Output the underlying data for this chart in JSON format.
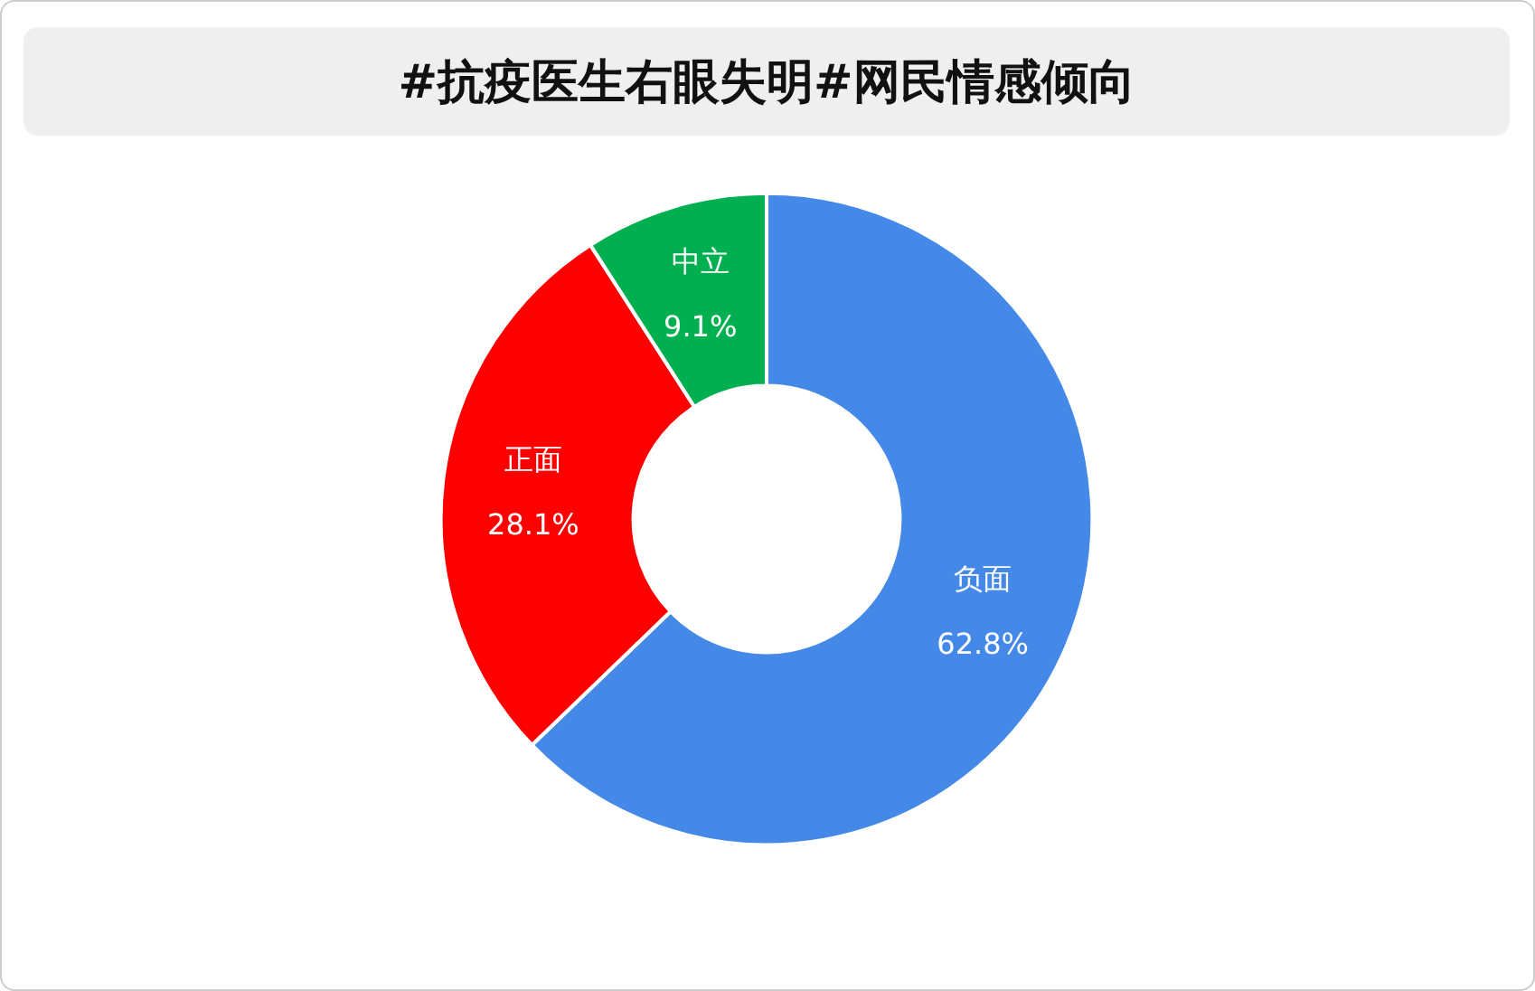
{
  "chart_data": {
    "type": "donut",
    "title": "#抗疫医生右眼失明#网民情感倾向",
    "categories": [
      "负面",
      "正面",
      "中立"
    ],
    "values": [
      62.8,
      28.1,
      9.1
    ],
    "colors": [
      "#4589e8",
      "#ff0000",
      "#00b050"
    ],
    "value_labels": [
      "62.8%",
      "28.1%",
      "9.1%"
    ],
    "legend": false
  }
}
